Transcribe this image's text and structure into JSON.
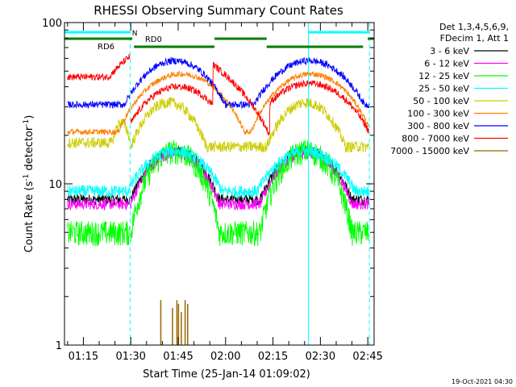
{
  "chart_data": {
    "type": "line",
    "title": "RHESSI Observing Summary Count Rates",
    "xlabel": "Start Time (25-Jan-14 01:09:02)",
    "ylabel_main": "Count Rate (s",
    "ylabel_sup": "-1",
    "ylabel_tail": " detector",
    "ylabel_end": ")",
    "yscale": "log",
    "ylim": [
      1,
      100
    ],
    "y_ticks": [
      {
        "value": 1,
        "label": "1"
      },
      {
        "value": 10,
        "label": "10"
      },
      {
        "value": 100,
        "label": "100"
      }
    ],
    "xlim_minutes": [
      69.03,
      167
    ],
    "x_ticks": [
      {
        "minute": 75,
        "label": "01:15"
      },
      {
        "minute": 90,
        "label": "01:30"
      },
      {
        "minute": 105,
        "label": "01:45"
      },
      {
        "minute": 120,
        "label": "02:00"
      },
      {
        "minute": 135,
        "label": "02:15"
      },
      {
        "minute": 150,
        "label": "02:30"
      },
      {
        "minute": 165,
        "label": "02:45"
      }
    ],
    "legend_header": [
      "Det 1,3,4,5,6,9,",
      "FDecim 1, Att 1"
    ],
    "series": [
      {
        "name": "3 - 6 keV",
        "color": "#000000"
      },
      {
        "name": "6 - 12 keV",
        "color": "#ff00ff"
      },
      {
        "name": "12 - 25 keV",
        "color": "#00ff00"
      },
      {
        "name": "25 - 50 keV",
        "color": "#00ffff"
      },
      {
        "name": "50 - 100 keV",
        "color": "#cccc00"
      },
      {
        "name": "100 - 300 keV",
        "color": "#ff7f00"
      },
      {
        "name": "300 - 800 keV",
        "color": "#0000ff"
      },
      {
        "name": "800 - 7000 keV",
        "color": "#ff0000"
      },
      {
        "name": "7000 - 15000 keV",
        "color": "#996600"
      }
    ],
    "night_boundaries": [
      {
        "minute": 89.8,
        "style": "dashed"
      },
      {
        "minute": 146.2,
        "style": "solid"
      },
      {
        "minute": 165.5,
        "style": "dashed"
      }
    ],
    "flag_labels": {
      "night": "N",
      "rd0": "RD0",
      "rd6": "RD6"
    },
    "flag_colors": {
      "night": "#00ffff",
      "rd": "#007f00"
    },
    "footer_date": "19-Oct-2021 04:30"
  }
}
